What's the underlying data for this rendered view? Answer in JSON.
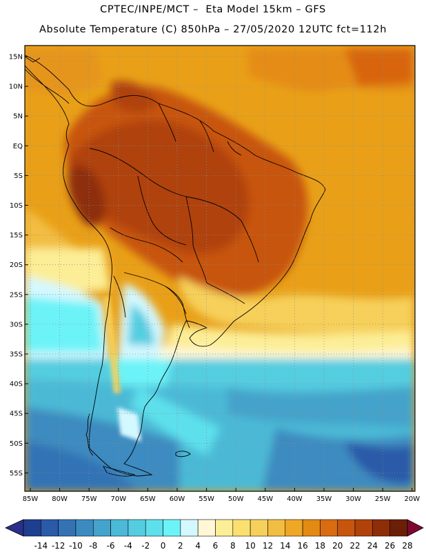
{
  "title": {
    "line1": "CPTEC/INPE/MCT –  Eta Model 15km – GFS",
    "line2": "Absolute Temperature (C) 850hPa – 27/05/2020 12UTC fct=112h"
  },
  "map": {
    "lat_labels": [
      "15N",
      "10N",
      "5N",
      "EQ",
      "5S",
      "10S",
      "15S",
      "20S",
      "25S",
      "30S",
      "35S",
      "40S",
      "45S",
      "50S",
      "55S"
    ],
    "lon_labels": [
      "85W",
      "80W",
      "75W",
      "70W",
      "65W",
      "60W",
      "55W",
      "50W",
      "45W",
      "40W",
      "35W",
      "30W",
      "25W",
      "20W"
    ]
  },
  "colorbar": {
    "labels": [
      "-14",
      "-12",
      "-10",
      "-8",
      "-6",
      "-4",
      "-2",
      "0",
      "2",
      "4",
      "6",
      "8",
      "10",
      "12",
      "14",
      "16",
      "18",
      "20",
      "22",
      "24",
      "26",
      "28"
    ],
    "colors": [
      "#1f3e8f",
      "#2a5aa8",
      "#3373b5",
      "#3c8bc0",
      "#44a3cb",
      "#4cb9d6",
      "#55cde0",
      "#5de0ec",
      "#6cf3f8",
      "#d4f8ff",
      "#fff7d6",
      "#fcee96",
      "#f9e070",
      "#f6d05a",
      "#f2bd43",
      "#eea825",
      "#e38a12",
      "#d86c10",
      "#c8550e",
      "#b0420a",
      "#8d2e08",
      "#6c1f08"
    ],
    "under_color": "#2c2f8a",
    "over_color": "#7d0a2e"
  }
}
